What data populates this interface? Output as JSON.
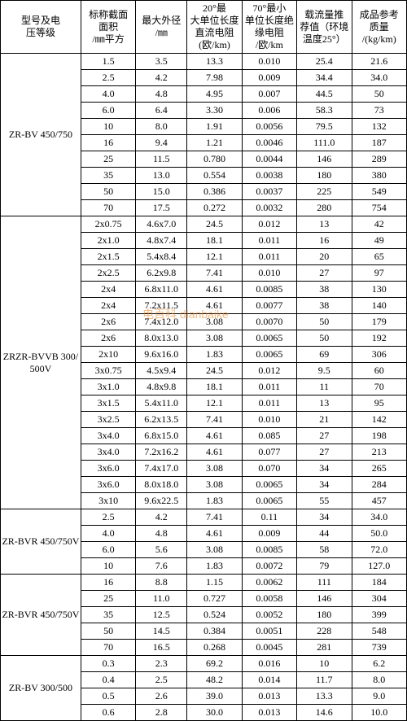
{
  "headers": [
    {
      "l1": "型号及电",
      "l2": "压等级",
      "unit": ""
    },
    {
      "l1": "标称截面",
      "l2": "面积",
      "unit": "/㎜平方"
    },
    {
      "l1": "最大外径",
      "l2": "",
      "unit": "/㎜"
    },
    {
      "l1": "20°最",
      "l2": "大单位长度直流电阻",
      "unit": "(欧/km)"
    },
    {
      "l1": "70°最小",
      "l2": "单位长度绝缘电阻",
      "unit": "/欧/km"
    },
    {
      "l1": "载流量推",
      "l2": "荐值（环境温度25°）",
      "unit": ""
    },
    {
      "l1": "成品参考",
      "l2": "质量",
      "unit": "/(kg/km)"
    }
  ],
  "groups": [
    {
      "label": "ZR-BV 450/750",
      "rows": [
        [
          "1.5",
          "3.5",
          "13.3",
          "0.010",
          "25.4",
          "21.6"
        ],
        [
          "2.5",
          "4.2",
          "7.98",
          "0.009",
          "34.4",
          "34.0"
        ],
        [
          "4.0",
          "4.8",
          "4.95",
          "0.007",
          "44.5",
          "50"
        ],
        [
          "6.0",
          "6.4",
          "3.30",
          "0.006",
          "58.3",
          "73"
        ],
        [
          "10",
          "8.0",
          "1.91",
          "0.0056",
          "79.5",
          "132"
        ],
        [
          "16",
          "9.4",
          "1.21",
          "0.0046",
          "111.0",
          "187"
        ],
        [
          "25",
          "11.5",
          "0.780",
          "0.0044",
          "146",
          "289"
        ],
        [
          "35",
          "13.0",
          "0.554",
          "0.0038",
          "180",
          "380"
        ],
        [
          "50",
          "15.0",
          "0.386",
          "0.0037",
          "225",
          "549"
        ],
        [
          "70",
          "17.5",
          "0.272",
          "0.0032",
          "280",
          "754"
        ]
      ]
    },
    {
      "label": "ZRZR-BVVB 300/500V",
      "rows": [
        [
          "2x0.75",
          "4.6x7.0",
          "24.5",
          "0.012",
          "13",
          "42"
        ],
        [
          "2x1.0",
          "4.8x7.4",
          "18.1",
          "0.011",
          "16",
          "49"
        ],
        [
          "2x1.5",
          "5.4x8.4",
          "12.1",
          "0.011",
          "20",
          "65"
        ],
        [
          "2x2.5",
          "6.2x9.8",
          "7.41",
          "0.010",
          "27",
          "97"
        ],
        [
          "2x4",
          "6.8x11.0",
          "4.61",
          "0.0085",
          "38",
          "130"
        ],
        [
          "2x4",
          "7.2x11.5",
          "4.61",
          "0.0077",
          "38",
          "140"
        ],
        [
          "2x6",
          "7.4x12.0",
          "3.08",
          "0.0070",
          "50",
          "179"
        ],
        [
          "2x6",
          "8.0x13.0",
          "3.08",
          "0.0065",
          "50",
          "192"
        ],
        [
          "2x10",
          "9.6x16.0",
          "1.83",
          "0.0065",
          "69",
          "306"
        ],
        [
          "3x0.75",
          "4.5x9.4",
          "24.5",
          "0.012",
          "9.5",
          "60"
        ],
        [
          "3x1.0",
          "4.8x9.8",
          "18.1",
          "0.011",
          "11",
          "70"
        ],
        [
          "3x1.5",
          "5.4x11.0",
          "12.1",
          "0.011",
          "13",
          "95"
        ],
        [
          "3x2.5",
          "6.2x13.5",
          "7.41",
          "0.010",
          "21",
          "142"
        ],
        [
          "3x4.0",
          "6.8x15.0",
          "4.61",
          "0.085",
          "27",
          "198"
        ],
        [
          "3x4.0",
          "7.2x16.2",
          "4.61",
          "0.077",
          "27",
          "213"
        ],
        [
          "3x6.0",
          "7.4x17.0",
          "3.08",
          "0.070",
          "34",
          "265"
        ],
        [
          "3x6.0",
          "8.0x18.0",
          "3.08",
          "0.0065",
          "34",
          "284"
        ],
        [
          "3x10",
          "9.6x22.5",
          "1.83",
          "0.0065",
          "55",
          "457"
        ]
      ]
    },
    {
      "label": "ZR-BVR 450/750V",
      "rows": [
        [
          "2.5",
          "4.2",
          "7.41",
          "0.11",
          "34",
          "34.0"
        ],
        [
          "4.0",
          "4.8",
          "4.61",
          "0.009",
          "44",
          "50.0"
        ],
        [
          "6.0",
          "5.6",
          "3.08",
          "0.0085",
          "58",
          "72.0"
        ],
        [
          "10",
          "7.6",
          "1.83",
          "0.0072",
          "79",
          "127.0"
        ]
      ]
    },
    {
      "label": "ZR-BVR 450/750V",
      "rows": [
        [
          "16",
          "8.8",
          "1.15",
          "0.0062",
          "111",
          "184"
        ],
        [
          "25",
          "11.0",
          "0.727",
          "0.0058",
          "146",
          "304"
        ],
        [
          "35",
          "12.5",
          "0.524",
          "0.0052",
          "180",
          "399"
        ],
        [
          "50",
          "14.5",
          "0.384",
          "0.0051",
          "228",
          "548"
        ],
        [
          "70",
          "16.5",
          "0.268",
          "0.0045",
          "281",
          "739"
        ]
      ]
    },
    {
      "label": "ZR-BV 300/500",
      "rows": [
        [
          "0.3",
          "2.3",
          "69.2",
          "0.016",
          "10",
          "6.2"
        ],
        [
          "0.4",
          "2.5",
          "48.2",
          "0.014",
          "11.7",
          "8.0"
        ],
        [
          "0.5",
          "2.6",
          "39.0",
          "0.013",
          "13.3",
          "9.0"
        ],
        [
          "0.6",
          "2.8",
          "30.0",
          "0.013",
          "14.6",
          "10.0"
        ]
      ]
    }
  ],
  "watermark": "电百科 dianbaike"
}
